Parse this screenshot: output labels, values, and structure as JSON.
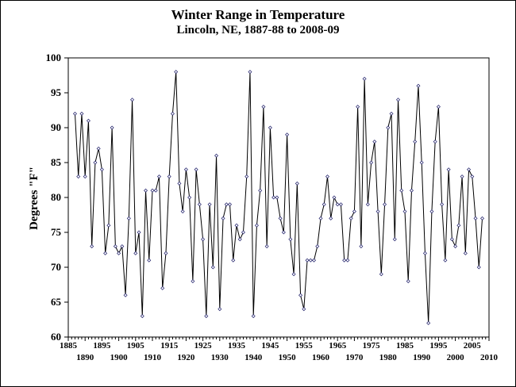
{
  "chart_data": {
    "type": "line",
    "title": "Winter Range in Temperature",
    "subtitle": "Lincoln, NE, 1887-88 to 2008-09",
    "ylabel": "Degrees \"F\"",
    "xlabel": "",
    "xlim": [
      1885,
      2010
    ],
    "ylim": [
      60,
      100
    ],
    "yticks": [
      60,
      65,
      70,
      75,
      80,
      85,
      90,
      95,
      100
    ],
    "xticks_upper": [
      "1885",
      "1895",
      "1905",
      "1915",
      "1925",
      "1935",
      "1945",
      "1955",
      "1965",
      "1975",
      "1985",
      "1995",
      "2005"
    ],
    "xticks_lower": [
      "1890",
      "1900",
      "1910",
      "1920",
      "1930",
      "1940",
      "1950",
      "1960",
      "1970",
      "1980",
      "1990",
      "2000",
      "2010"
    ],
    "grid": false,
    "colors": {
      "line": "#000000",
      "marker_fill": "#ffffff",
      "marker_stroke": "#1a1a66"
    },
    "series": [
      {
        "x": [
          1887,
          1888,
          1889,
          1890,
          1891,
          1892,
          1893,
          1894,
          1895,
          1896,
          1897,
          1898,
          1899,
          1900,
          1901,
          1902,
          1903,
          1904,
          1905,
          1906,
          1907,
          1908,
          1909,
          1910,
          1911,
          1912,
          1913,
          1914,
          1915,
          1916,
          1917,
          1918,
          1919,
          1920,
          1921,
          1922,
          1923,
          1924,
          1925,
          1926,
          1927,
          1928,
          1929,
          1930,
          1931,
          1932,
          1933,
          1934,
          1935,
          1936,
          1937,
          1938,
          1939,
          1940,
          1941,
          1942,
          1943,
          1944,
          1945,
          1946,
          1947,
          1948,
          1949,
          1950,
          1951,
          1952,
          1953,
          1954,
          1955,
          1956,
          1957,
          1958,
          1959,
          1960,
          1961,
          1962,
          1963,
          1964,
          1965,
          1966,
          1967,
          1968,
          1969,
          1970,
          1971,
          1972,
          1973,
          1974,
          1975,
          1976,
          1977,
          1978,
          1979,
          1980,
          1981,
          1982,
          1983,
          1984,
          1985,
          1986,
          1987,
          1988,
          1989,
          1990,
          1991,
          1992,
          1993,
          1994,
          1995,
          1996,
          1997,
          1998,
          1999,
          2000,
          2001,
          2002,
          2003,
          2004,
          2005,
          2006,
          2007,
          2008
        ],
        "values": [
          92,
          83,
          92,
          83,
          91,
          73,
          85,
          87,
          84,
          72,
          76,
          90,
          73,
          72,
          73,
          66,
          77,
          94,
          72,
          75,
          63,
          81,
          71,
          81,
          81,
          83,
          67,
          72,
          83,
          92,
          98,
          82,
          78,
          84,
          80,
          68,
          84,
          79,
          74,
          63,
          79,
          70,
          86,
          64,
          77,
          79,
          79,
          71,
          76,
          74,
          75,
          83,
          98,
          63,
          76,
          81,
          93,
          73,
          90,
          80,
          80,
          77,
          75,
          89,
          74,
          69,
          82,
          66,
          64,
          71,
          71,
          71,
          73,
          77,
          79,
          83,
          77,
          80,
          79,
          79,
          71,
          71,
          77,
          78,
          93,
          73,
          97,
          79,
          85,
          88,
          78,
          69,
          79,
          90,
          92,
          74,
          94,
          81,
          78,
          68,
          81,
          88,
          96,
          85,
          72,
          62,
          78,
          88,
          93,
          79,
          71,
          84,
          74,
          73,
          76,
          83,
          72,
          84,
          83,
          77,
          70,
          77
        ]
      }
    ]
  }
}
